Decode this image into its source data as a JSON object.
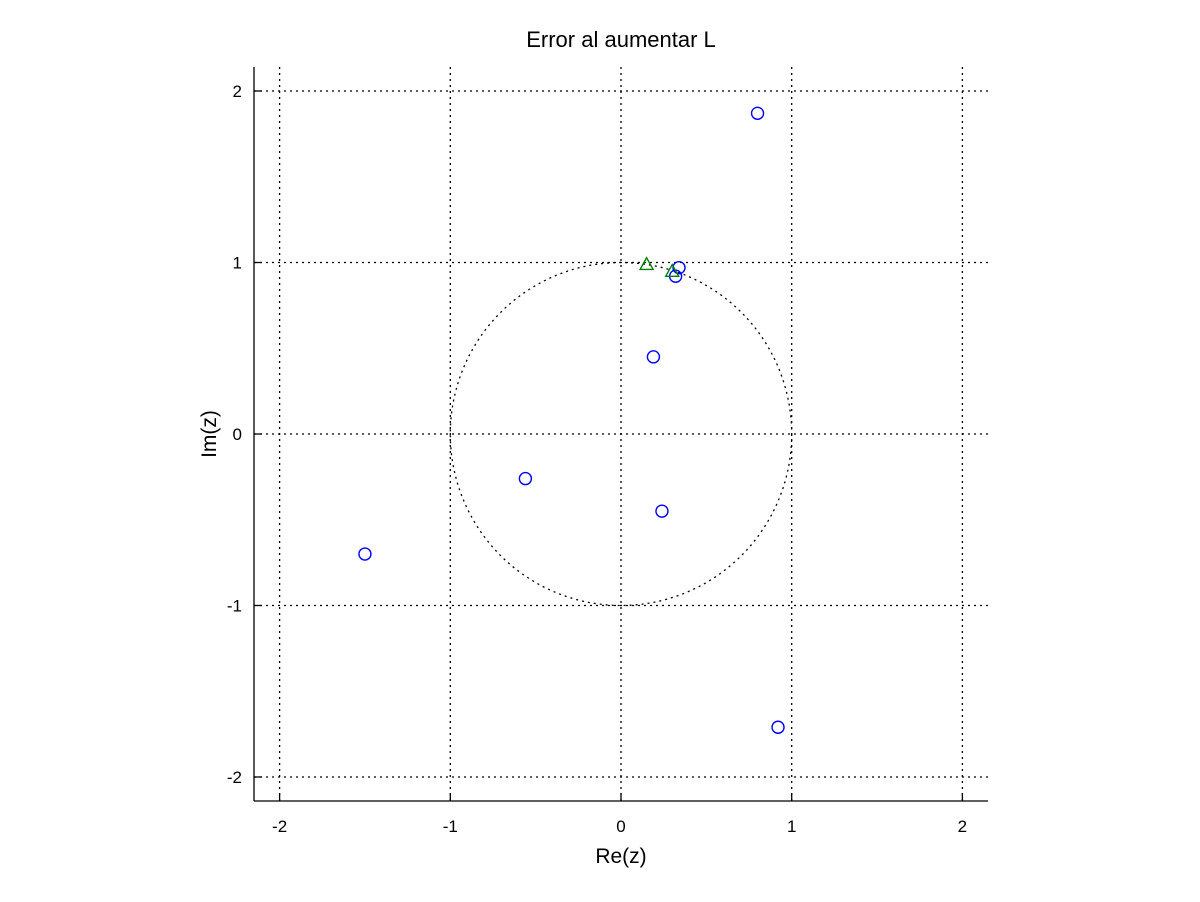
{
  "chart_data": {
    "type": "scatter",
    "title": "Error al aumentar L",
    "xlabel": "Re(z)",
    "ylabel": "Im(z)",
    "xlim": [
      -2.15,
      2.15
    ],
    "ylim": [
      -2.14,
      2.14
    ],
    "x_ticks": [
      -2,
      -1,
      0,
      1,
      2
    ],
    "y_ticks": [
      -2,
      -1,
      0,
      1,
      2
    ],
    "x_tick_labels": [
      "-2",
      "-1",
      "0",
      "1",
      "2"
    ],
    "y_tick_labels": [
      "-2",
      "-1",
      "0",
      "1",
      "2"
    ],
    "grid": true,
    "unit_circle": {
      "center": [
        0,
        0
      ],
      "radius": 1,
      "style": "dotted"
    },
    "series": [
      {
        "marker": "circle",
        "color": "#0000ff",
        "points": [
          [
            0.8,
            1.87
          ],
          [
            0.34,
            0.97
          ],
          [
            0.32,
            0.92
          ],
          [
            0.19,
            0.45
          ],
          [
            -0.56,
            -0.26
          ],
          [
            0.24,
            -0.45
          ],
          [
            -1.5,
            -0.7
          ],
          [
            0.92,
            -1.71
          ]
        ]
      },
      {
        "marker": "triangle",
        "color": "#007f00",
        "points": [
          [
            0.15,
            0.99
          ],
          [
            0.3,
            0.95
          ]
        ]
      }
    ]
  }
}
